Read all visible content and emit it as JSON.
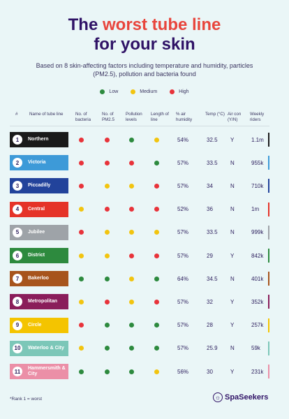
{
  "title": {
    "line1_pre": "The",
    "line1_highlight": "worst tube line",
    "line2": "for your skin"
  },
  "subtitle": "Based on 8 skin-affecting factors including temperature and humidity, particles (PM2.5), pollution and bacteria found",
  "legend": [
    {
      "label": "Low",
      "color": "#2d8a3e"
    },
    {
      "label": "Medium",
      "color": "#f2c40f"
    },
    {
      "label": "High",
      "color": "#e8333a"
    }
  ],
  "headers": {
    "rank": "#",
    "name": "Name of tube line",
    "bacteria": "No. of bacteria",
    "pm25": "No. of PM2.5",
    "pollution": "Pollution levels",
    "length": "Length of line",
    "humidity": "% air humidity",
    "temp": "Temp (°C)",
    "aircon": "Air con (Y/N)",
    "riders": "Weekly riders"
  },
  "rows": [
    {
      "rank": "1",
      "name": "Northern",
      "color": "#1a1a1a",
      "bacteria": "r",
      "pm25": "r",
      "pollution": "g",
      "length": "y",
      "humidity": "54%",
      "temp": "32.5",
      "aircon": "Y",
      "riders": "1.1m"
    },
    {
      "rank": "2",
      "name": "Victoria",
      "color": "#3d9ad8",
      "bacteria": "r",
      "pm25": "r",
      "pollution": "r",
      "length": "g",
      "humidity": "57%",
      "temp": "33.5",
      "aircon": "N",
      "riders": "955k"
    },
    {
      "rank": "3",
      "name": "Piccadilly",
      "color": "#22439b",
      "bacteria": "r",
      "pm25": "y",
      "pollution": "y",
      "length": "r",
      "humidity": "57%",
      "temp": "34",
      "aircon": "N",
      "riders": "710k"
    },
    {
      "rank": "4",
      "name": "Central",
      "color": "#e53328",
      "bacteria": "y",
      "pm25": "r",
      "pollution": "r",
      "length": "r",
      "humidity": "52%",
      "temp": "36",
      "aircon": "N",
      "riders": "1m"
    },
    {
      "rank": "5",
      "name": "Jubilee",
      "color": "#9ea3a8",
      "bacteria": "r",
      "pm25": "y",
      "pollution": "y",
      "length": "y",
      "humidity": "57%",
      "temp": "33.5",
      "aircon": "N",
      "riders": "999k"
    },
    {
      "rank": "6",
      "name": "District",
      "color": "#2d8a3e",
      "bacteria": "y",
      "pm25": "y",
      "pollution": "r",
      "length": "r",
      "humidity": "57%",
      "temp": "29",
      "aircon": "Y",
      "riders": "842k"
    },
    {
      "rank": "7",
      "name": "Bakerloo",
      "color": "#a7541c",
      "bacteria": "g",
      "pm25": "g",
      "pollution": "y",
      "length": "g",
      "humidity": "64%",
      "temp": "34.5",
      "aircon": "N",
      "riders": "401k"
    },
    {
      "rank": "8",
      "name": "Metropolitan",
      "color": "#8a1d5a",
      "bacteria": "y",
      "pm25": "r",
      "pollution": "y",
      "length": "r",
      "humidity": "57%",
      "temp": "32",
      "aircon": "Y",
      "riders": "352k"
    },
    {
      "rank": "9",
      "name": "Circle",
      "color": "#f4c400",
      "bacteria": "r",
      "pm25": "g",
      "pollution": "g",
      "length": "g",
      "humidity": "57%",
      "temp": "28",
      "aircon": "Y",
      "riders": "257k"
    },
    {
      "rank": "10",
      "name": "Waterloo & City",
      "color": "#7cc7b8",
      "bacteria": "y",
      "pm25": "g",
      "pollution": "g",
      "length": "g",
      "humidity": "57%",
      "temp": "25.9",
      "aircon": "N",
      "riders": "59k"
    },
    {
      "rank": "11",
      "name": "Hammersmith & City",
      "color": "#eb8fa7",
      "bacteria": "g",
      "pm25": "g",
      "pollution": "g",
      "length": "y",
      "humidity": "56%",
      "temp": "30",
      "aircon": "Y",
      "riders": "231k"
    }
  ],
  "footnote": "*Rank 1 = worst",
  "brand": "SpaSeekers"
}
